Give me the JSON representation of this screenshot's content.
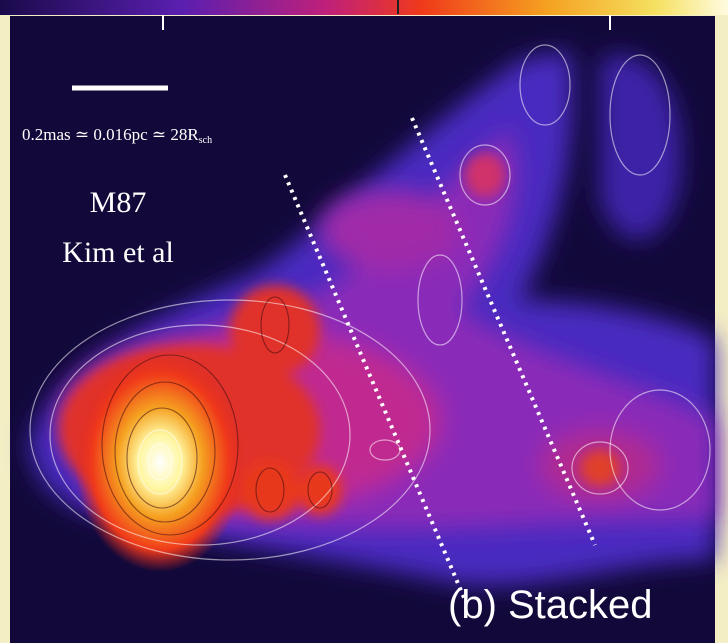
{
  "scale_bar": {
    "label": "0.2mas ≃ 0.016pc ≃ 28R",
    "subscript": "sch"
  },
  "annotation": {
    "lines": [
      "M87",
      "Kim et al"
    ]
  },
  "panel_label": "(b) Stacked"
}
